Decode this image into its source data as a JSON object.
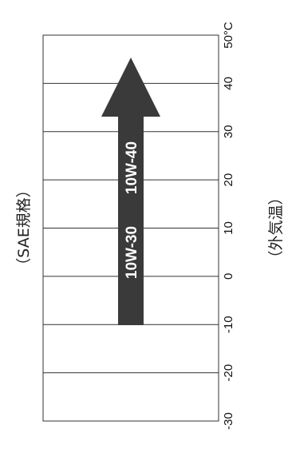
{
  "standard_label": "（SAE規格）",
  "axis_label": "（外気温）",
  "unit": "°C",
  "temperatures": [
    "-30",
    "-20",
    "-10",
    "0",
    "10",
    "20",
    "30",
    "40",
    "50°C"
  ],
  "grades": [
    "10W-30",
    "10W-40"
  ],
  "colors": {
    "arrow": "#3a3a3a",
    "grid": "#333333",
    "text": "#111111"
  },
  "chart_data": {
    "type": "range",
    "axis": {
      "label": "（外気温）",
      "unit": "°C",
      "min": -30,
      "max": 50,
      "ticks": [
        -30,
        -20,
        -10,
        0,
        10,
        20,
        30,
        40,
        50
      ]
    },
    "ranges": [
      {
        "name": "10W-30",
        "from": -10,
        "to": 40,
        "direction": "up"
      },
      {
        "name": "10W-40",
        "from": -10,
        "to": 40,
        "direction": "up"
      }
    ]
  }
}
